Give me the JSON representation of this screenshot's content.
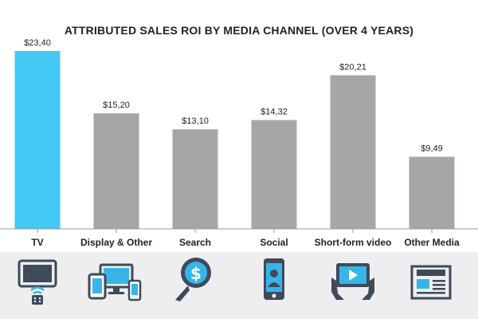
{
  "chart_data": {
    "type": "bar",
    "title": "ATTRIBUTED SALES ROI BY MEDIA CHANNEL (OVER 4 YEARS)",
    "categories": [
      "TV",
      "Display & Other",
      "Search",
      "Social",
      "Short-form video",
      "Other Media"
    ],
    "values": [
      23.4,
      15.2,
      13.1,
      14.32,
      20.21,
      9.49
    ],
    "data_labels": [
      "$23,40",
      "$15,20",
      "$13,10",
      "$14,32",
      "$20,21",
      "$9,49"
    ],
    "xlabel": "",
    "ylabel": "",
    "ylim": [
      0,
      23.4
    ],
    "grid": false,
    "legend": "none",
    "colors": {
      "highlight": "#44c8f5",
      "bar": "#a8a6a4",
      "axis": "#999999",
      "icon_dark": "#3f4a5a",
      "icon_accent": "#37b5e8"
    },
    "highlight_index": 0
  },
  "icons": [
    "tv-remote-icon",
    "devices-icon",
    "search-dollar-icon",
    "smartphone-user-icon",
    "tablet-video-icon",
    "newspaper-icon"
  ]
}
